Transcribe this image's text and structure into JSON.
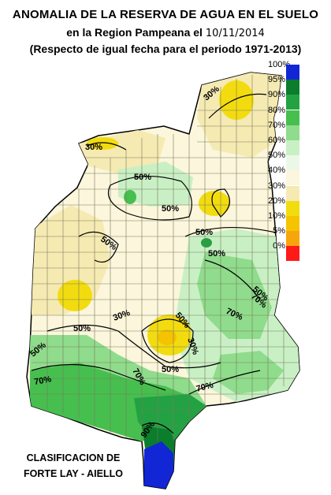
{
  "header": {
    "line1": "ANOMALIA DE LA RESERVA DE AGUA EN EL SUELO",
    "line2_prefix": "en la Region Pampeana el",
    "line2_date": "10/11/2014",
    "line3": "(Respecto de igual fecha para el periodo 1971-2013)"
  },
  "legend": [
    {
      "label": "100%",
      "color": "#1226d6"
    },
    {
      "label": "95%",
      "color": "#0b7d2c"
    },
    {
      "label": "90%",
      "color": "#23a243"
    },
    {
      "label": "80%",
      "color": "#46bf4f"
    },
    {
      "label": "70%",
      "color": "#8fdc8c"
    },
    {
      "label": "60%",
      "color": "#c9f0c5"
    },
    {
      "label": "50%",
      "color": "#ebf8e8"
    },
    {
      "label": "40%",
      "color": "#fbf6dc"
    },
    {
      "label": "30%",
      "color": "#f5eab2"
    },
    {
      "label": "20%",
      "color": "#f2dc10"
    },
    {
      "label": "10%",
      "color": "#f5c300"
    },
    {
      "label": "5%",
      "color": "#f7a50d"
    },
    {
      "label": "0%",
      "color": "#ff1a1a"
    }
  ],
  "map": {
    "isolines": [
      "30%",
      "30%",
      "50%",
      "50%",
      "50%",
      "50%",
      "50%",
      "50%",
      "50%",
      "30%",
      "50%",
      "30%",
      "70%",
      "70%",
      "70%",
      "70%",
      "90%",
      "50%",
      "70%",
      "50%"
    ]
  },
  "footer": {
    "line1": "CLASIFICACION DE",
    "line2": "FORTE LAY - AIELLO"
  }
}
